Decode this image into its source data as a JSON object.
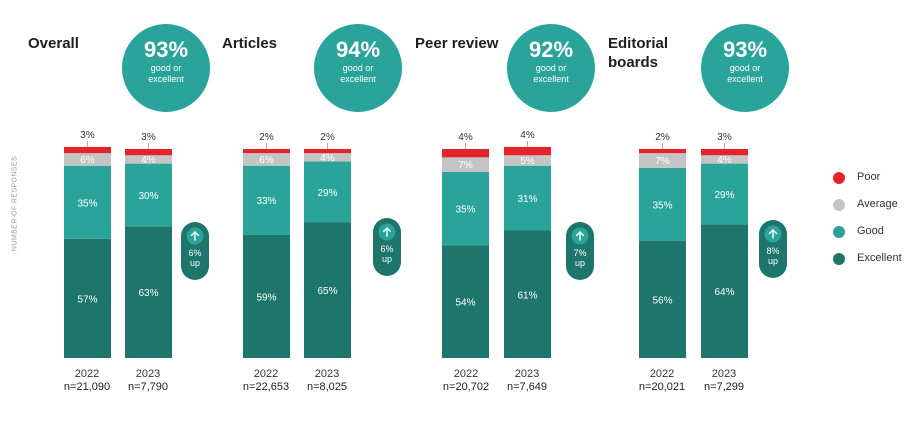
{
  "y_axis_label": "NUMBER OF RESPONSES",
  "colors": {
    "poor": "#e3242b",
    "average": "#c4c4c4",
    "good": "#2aa39a",
    "excellent": "#1d756b"
  },
  "legend": [
    {
      "label": "Poor",
      "color": "#e3242b"
    },
    {
      "label": "Average",
      "color": "#c4c4c4"
    },
    {
      "label": "Good",
      "color": "#2aa39a"
    },
    {
      "label": "Excellent",
      "color": "#1d756b"
    }
  ],
  "panels": [
    {
      "title": "Overall",
      "summary_pct": "93%",
      "summary_text": "good or excellent",
      "change": "6% up",
      "years": [
        {
          "year": "2022",
          "n": "n=21,090",
          "poor": "3%",
          "average": "6%",
          "good": "35%",
          "excellent": "57%"
        },
        {
          "year": "2023",
          "n": "n=7,790",
          "poor": "3%",
          "average": "4%",
          "good": "30%",
          "excellent": "63%"
        }
      ]
    },
    {
      "title": "Articles",
      "summary_pct": "94%",
      "summary_text": "good or excellent",
      "change": "6% up",
      "years": [
        {
          "year": "2022",
          "n": "n=22,653",
          "poor": "2%",
          "average": "6%",
          "good": "33%",
          "excellent": "59%"
        },
        {
          "year": "2023",
          "n": "n=8,025",
          "poor": "2%",
          "average": "4%",
          "good": "29%",
          "excellent": "65%"
        }
      ]
    },
    {
      "title": "Peer review",
      "summary_pct": "92%",
      "summary_text": "good or excellent",
      "change": "7% up",
      "years": [
        {
          "year": "2022",
          "n": "n=20,702",
          "poor": "4%",
          "average": "7%",
          "good": "35%",
          "excellent": "54%"
        },
        {
          "year": "2023",
          "n": "n=7,649",
          "poor": "4%",
          "average": "5%",
          "good": "31%",
          "excellent": "61%"
        }
      ]
    },
    {
      "title": "Editorial boards",
      "summary_pct": "93%",
      "summary_text": "good or excellent",
      "change": "8% up",
      "years": [
        {
          "year": "2022",
          "n": "n=20,021",
          "poor": "2%",
          "average": "7%",
          "good": "35%",
          "excellent": "56%"
        },
        {
          "year": "2023",
          "n": "n=7,299",
          "poor": "3%",
          "average": "4%",
          "good": "29%",
          "excellent": "64%"
        }
      ]
    }
  ],
  "chart_data": {
    "type": "bar",
    "stacked": true,
    "ylabel": "NUMBER OF RESPONSES",
    "panels": [
      "Overall",
      "Articles",
      "Peer review",
      "Editorial boards"
    ],
    "categories": [
      "2022",
      "2023"
    ],
    "series": [
      {
        "name": "Poor",
        "values": [
          [
            3,
            3
          ],
          [
            2,
            2
          ],
          [
            4,
            4
          ],
          [
            2,
            3
          ]
        ]
      },
      {
        "name": "Average",
        "values": [
          [
            6,
            4
          ],
          [
            6,
            4
          ],
          [
            7,
            5
          ],
          [
            7,
            4
          ]
        ]
      },
      {
        "name": "Good",
        "values": [
          [
            35,
            30
          ],
          [
            33,
            29
          ],
          [
            35,
            31
          ],
          [
            35,
            29
          ]
        ]
      },
      {
        "name": "Excellent",
        "values": [
          [
            57,
            63
          ],
          [
            59,
            65
          ],
          [
            54,
            61
          ],
          [
            56,
            64
          ]
        ]
      }
    ],
    "sample_sizes": [
      [
        21090,
        7790
      ],
      [
        22653,
        8025
      ],
      [
        20702,
        7649
      ],
      [
        20021,
        7299
      ]
    ],
    "summary_good_or_excellent": [
      93,
      94,
      92,
      93
    ],
    "change_up": [
      6,
      6,
      7,
      8
    ],
    "legend_position": "right"
  }
}
